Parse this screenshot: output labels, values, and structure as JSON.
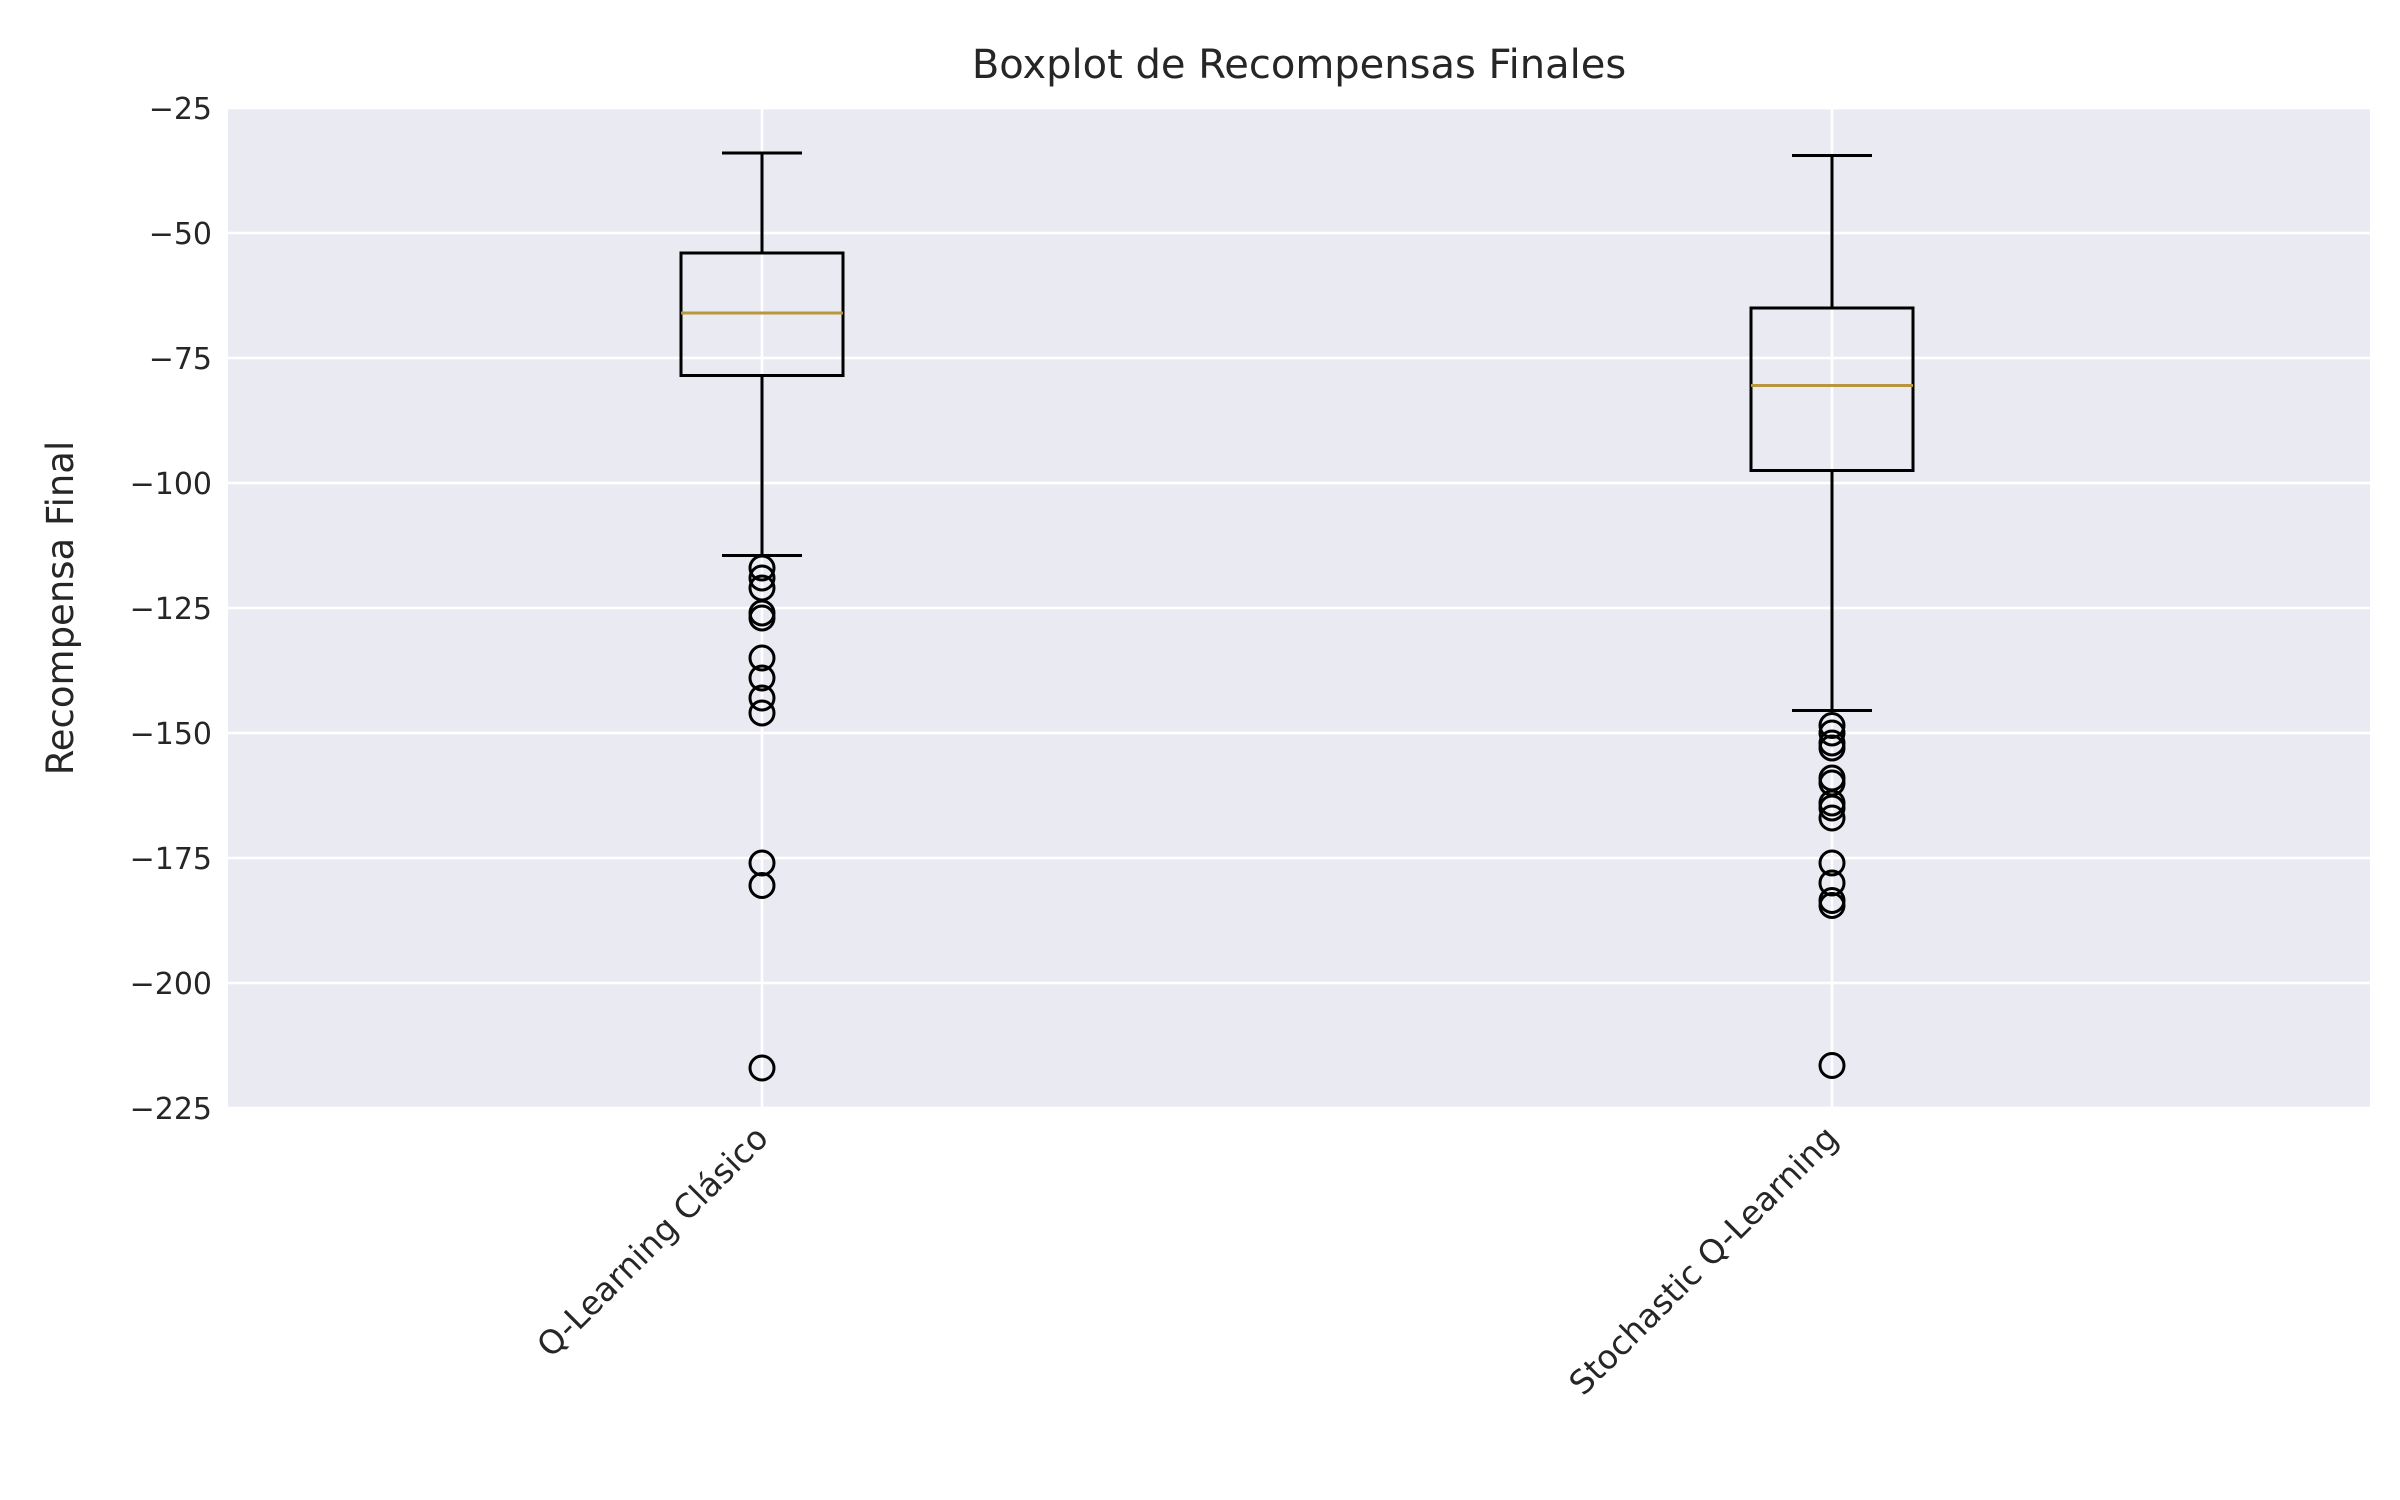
{
  "chart_data": {
    "type": "boxplot",
    "title": "Boxplot de Recompensas Finales",
    "xlabel": "",
    "ylabel": "Recompensa Final",
    "ylim": [
      -225,
      -25
    ],
    "yticks": [
      -25,
      -50,
      -75,
      -100,
      -125,
      -150,
      -175,
      -200,
      -225
    ],
    "ytick_labels": [
      "−25",
      "−50",
      "−75",
      "−100",
      "−125",
      "−150",
      "−175",
      "−200",
      "−225"
    ],
    "grid": true,
    "categories": [
      "Q-Learning Clásico",
      "Stochastic Q-Learning"
    ],
    "boxes": [
      {
        "whisker_low": -114.5,
        "q1": -78.5,
        "median": -66,
        "q3": -54,
        "whisker_high": -34,
        "outliers": [
          -117,
          -119,
          -121,
          -126,
          -127,
          -135,
          -139,
          -143,
          -146,
          -176,
          -180.5,
          -217
        ]
      },
      {
        "whisker_low": -145.5,
        "q1": -97.5,
        "median": -80.5,
        "q3": -65,
        "whisker_high": -34.5,
        "outliers": [
          -148.5,
          -150,
          -152,
          -153,
          -159,
          -160,
          -164,
          -165,
          -167,
          -176,
          -180,
          -183.5,
          -184.5,
          -216.5
        ]
      }
    ],
    "colors": {
      "background": "#eaeaf2",
      "grid": "#ffffff",
      "box": "#000000",
      "median": "#b8963e",
      "text": "#262626"
    }
  }
}
